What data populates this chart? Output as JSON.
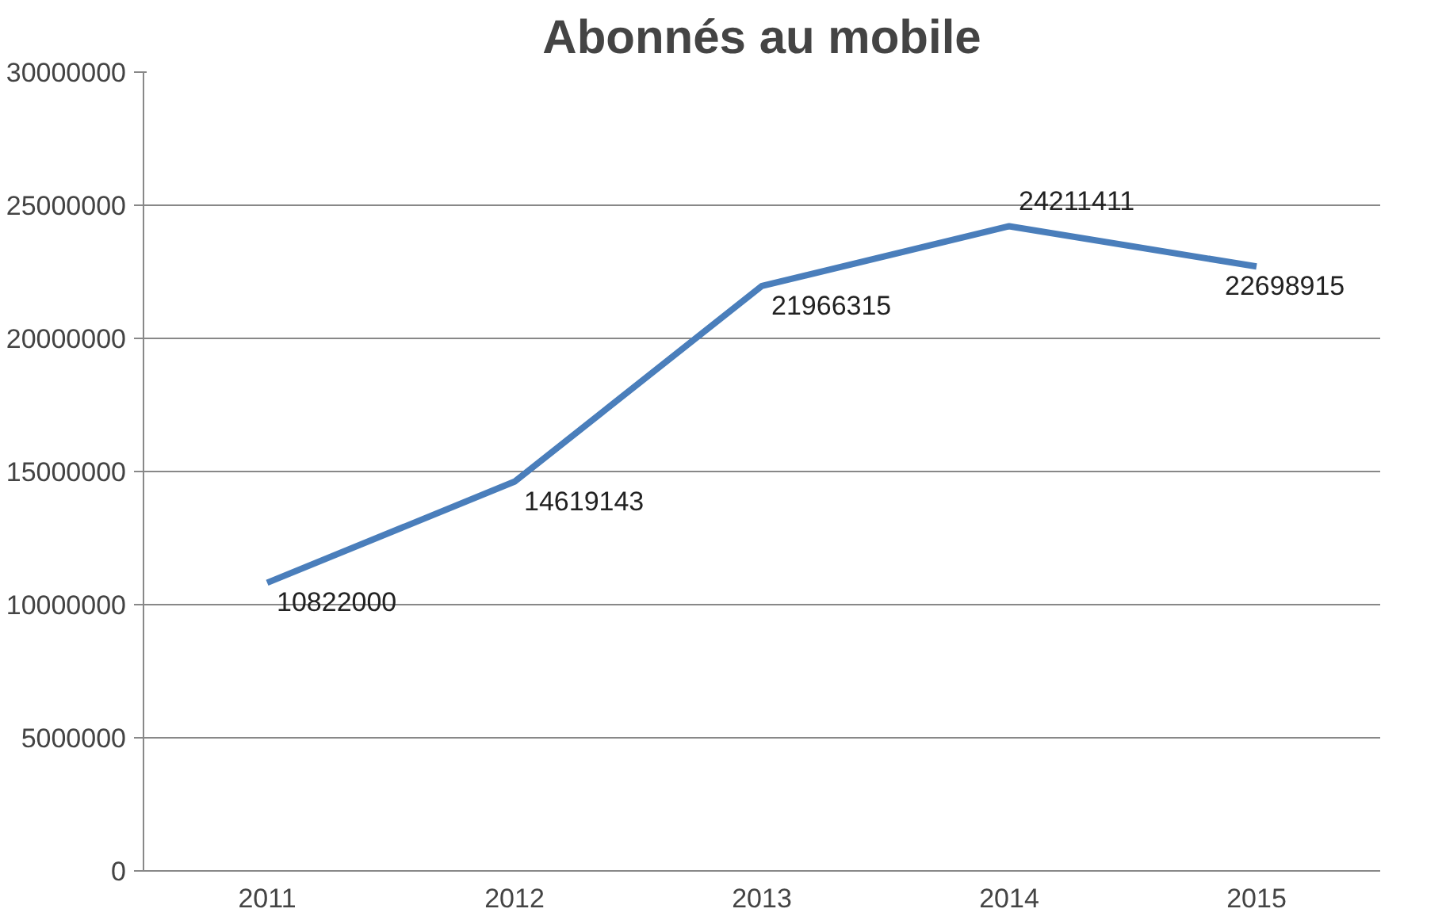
{
  "chart_data": {
    "type": "line",
    "title": "Abonnés au mobile",
    "categories": [
      "2011",
      "2012",
      "2013",
      "2014",
      "2015"
    ],
    "series": [
      {
        "color": "#4a7ebb",
        "values": [
          10822000,
          14619143,
          21966315,
          24211411,
          22698915
        ]
      }
    ],
    "ylim": [
      0,
      30000000
    ],
    "yticks": [
      0,
      5000000,
      10000000,
      15000000,
      20000000,
      25000000,
      30000000
    ],
    "grid": "y",
    "data_labels": true,
    "marker": "none",
    "line_style": "solid"
  }
}
